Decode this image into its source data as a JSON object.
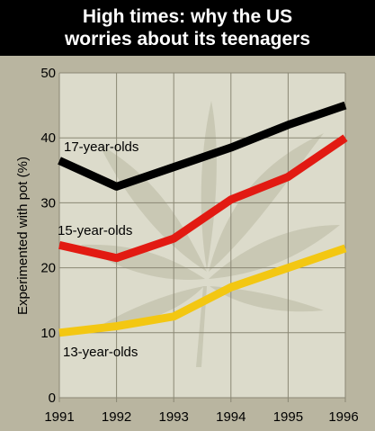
{
  "title_lines": [
    "High times: why the US",
    "worries about its teenagers"
  ],
  "colors": {
    "background": "#b9b5a0",
    "plot_area": "#dcdbcb",
    "leaf": "#c6c5b1",
    "grid": "#8a8774"
  },
  "chart_data": {
    "type": "line",
    "title": "High times: why the US worries about its teenagers",
    "xlabel": "",
    "ylabel": "Experimented with pot (%)",
    "x": [
      1991,
      1992,
      1993,
      1994,
      1995,
      1996
    ],
    "x_ticks": [
      "1991",
      "1992",
      "1993",
      "1994",
      "1995",
      "1996"
    ],
    "y_ticks": [
      "0",
      "10",
      "20",
      "30",
      "40",
      "50"
    ],
    "ylim": [
      0,
      50
    ],
    "grid": true,
    "series": [
      {
        "name": "17-year-olds",
        "values": [
          36.5,
          32.5,
          35.5,
          38.5,
          42,
          45
        ],
        "color": "#000000"
      },
      {
        "name": "15-year-olds",
        "values": [
          23.5,
          21.5,
          24.5,
          30.5,
          34,
          40
        ],
        "color": "#e21a12"
      },
      {
        "name": "13-year-olds",
        "values": [
          10,
          11,
          12.5,
          17,
          20,
          23
        ],
        "color": "#f3c712"
      }
    ]
  }
}
